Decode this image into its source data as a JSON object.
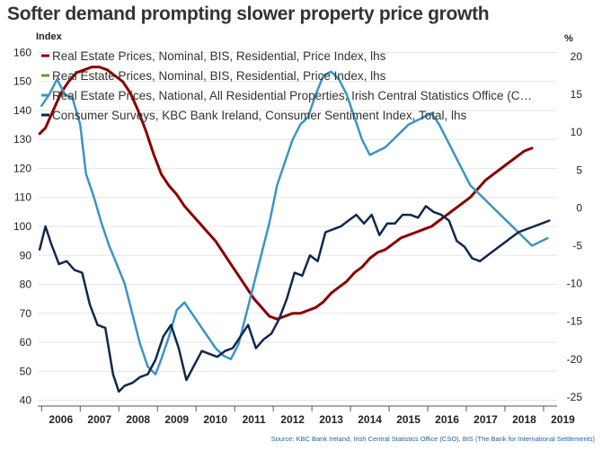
{
  "chart_data": {
    "type": "line",
    "title": "Softer demand prompting slower property price growth",
    "source": "Source: KBC Bank Ireland, Irish Central Statistics Office (CSO), BIS (The Bank for International Settlements)",
    "y_left": {
      "label": "Index",
      "ticks": [
        40,
        50,
        60,
        70,
        80,
        90,
        100,
        110,
        120,
        130,
        140,
        150,
        160
      ],
      "range": [
        38,
        162
      ]
    },
    "y_right": {
      "label": "%",
      "ticks": [
        -25,
        -20,
        -15,
        -10,
        -5,
        0,
        5,
        10,
        15,
        20
      ],
      "range": [
        -26.2,
        21.3
      ]
    },
    "x_axis": {
      "year_labels": [
        "2006",
        "2007",
        "2008",
        "2009",
        "2010",
        "2011",
        "2012",
        "2013",
        "2014",
        "2015",
        "2016",
        "2017",
        "2018",
        "2019"
      ],
      "range": [
        2005.9,
        2019.35
      ]
    },
    "grid": true,
    "legend_position": "top-left",
    "colors": {
      "nominal_bis": "#8b0000",
      "nominal_bis_duplicate": "#5e9e2e",
      "cso_yoy": "#3a95c4",
      "sentiment": "#10284e"
    },
    "series": [
      {
        "name": "Real Estate Prices, Nominal, BIS, Residential, Price Index, lhs",
        "axis": "left",
        "color": "#8b0000",
        "x": [
          2005.95,
          2006.1,
          2006.3,
          2006.5,
          2006.7,
          2006.9,
          2007.1,
          2007.3,
          2007.5,
          2007.7,
          2007.9,
          2008.1,
          2008.3,
          2008.5,
          2008.7,
          2008.9,
          2009.1,
          2009.3,
          2009.5,
          2009.7,
          2009.9,
          2010.1,
          2010.3,
          2010.5,
          2010.7,
          2010.9,
          2011.1,
          2011.3,
          2011.5,
          2011.7,
          2011.9,
          2012.1,
          2012.3,
          2012.5,
          2012.7,
          2012.9,
          2013.1,
          2013.3,
          2013.5,
          2013.7,
          2013.9,
          2014.1,
          2014.3,
          2014.5,
          2014.7,
          2014.9,
          2015.1,
          2015.3,
          2015.5,
          2015.7,
          2015.9,
          2016.1,
          2016.3,
          2016.5,
          2016.7,
          2016.9,
          2017.1,
          2017.3,
          2017.5,
          2017.7,
          2017.9,
          2018.1,
          2018.3,
          2018.5,
          2018.7
        ],
        "values": [
          132,
          134,
          140,
          146,
          150,
          153,
          154,
          155,
          155,
          154,
          152,
          150,
          146,
          140,
          133,
          125,
          118,
          114,
          111,
          107,
          104,
          101,
          98,
          95,
          91,
          87,
          83,
          79,
          75,
          72,
          69,
          68,
          69,
          70,
          70,
          71,
          72,
          74,
          77,
          79,
          81,
          84,
          86,
          89,
          91,
          92,
          94,
          96,
          97,
          98,
          99,
          100,
          102,
          104,
          106,
          108,
          110,
          113,
          116,
          118,
          120,
          122,
          124,
          126,
          127
        ]
      },
      {
        "name": "Real Estate Prices, Nominal, BIS, Residential, Price Index, lhs",
        "axis": "left",
        "color": "#5e9e2e",
        "x": [],
        "values": []
      },
      {
        "name": "Real Estate Prices, National, All Residential Properties, Irish Central Statistics Office (C…",
        "axis": "right",
        "color": "#3a95c4",
        "x": [
          2006.0,
          2006.2,
          2006.4,
          2006.6,
          2006.8,
          2007.0,
          2007.15,
          2007.35,
          2007.55,
          2007.75,
          2007.95,
          2008.15,
          2008.35,
          2008.55,
          2008.75,
          2008.95,
          2009.1,
          2009.3,
          2009.5,
          2009.7,
          2009.9,
          2010.1,
          2010.3,
          2010.5,
          2010.7,
          2010.9,
          2011.1,
          2011.3,
          2011.5,
          2011.7,
          2011.9,
          2012.1,
          2012.3,
          2012.5,
          2012.7,
          2012.9,
          2013.1,
          2013.3,
          2013.5,
          2013.7,
          2013.9,
          2014.1,
          2014.3,
          2014.5,
          2014.7,
          2014.9,
          2015.1,
          2015.3,
          2015.5,
          2015.7,
          2015.9,
          2016.1,
          2016.3,
          2016.5,
          2016.7,
          2016.9,
          2017.1,
          2017.3,
          2017.5,
          2017.7,
          2017.9,
          2018.1,
          2018.3,
          2018.5,
          2018.7,
          2018.9,
          2019.1
        ],
        "values": [
          13.5,
          15,
          17,
          15,
          14.5,
          11,
          4.5,
          1.5,
          -2,
          -5,
          -7.5,
          -10,
          -14,
          -18,
          -21,
          -22,
          -20,
          -17,
          -13.5,
          -12.5,
          -14,
          -15.5,
          -17,
          -18.5,
          -19.5,
          -20,
          -18,
          -14,
          -10,
          -6,
          -2,
          3,
          6,
          9,
          11,
          12,
          15,
          17.5,
          18,
          17,
          15,
          12,
          9,
          7,
          7.5,
          8,
          9,
          10,
          11,
          11.5,
          12,
          12.5,
          11,
          9,
          7,
          5,
          3,
          2,
          1,
          0,
          -1,
          -2,
          -3,
          -4,
          -5,
          -4.5,
          -4
        ]
      },
      {
        "name": "Consumer Surveys, KBC Bank Ireland, Consumer Sentiment Index, Total, lhs",
        "axis": "left",
        "color": "#10284e",
        "x": [
          2005.95,
          2006.1,
          2006.25,
          2006.45,
          2006.65,
          2006.85,
          2007.05,
          2007.25,
          2007.45,
          2007.65,
          2007.85,
          2008.0,
          2008.15,
          2008.35,
          2008.55,
          2008.75,
          2008.95,
          2009.15,
          2009.35,
          2009.55,
          2009.75,
          2009.95,
          2010.15,
          2010.35,
          2010.55,
          2010.75,
          2010.95,
          2011.15,
          2011.35,
          2011.55,
          2011.75,
          2011.95,
          2012.15,
          2012.35,
          2012.55,
          2012.75,
          2012.95,
          2013.15,
          2013.35,
          2013.55,
          2013.75,
          2013.95,
          2014.15,
          2014.35,
          2014.55,
          2014.75,
          2014.95,
          2015.15,
          2015.35,
          2015.55,
          2015.75,
          2015.95,
          2016.15,
          2016.35,
          2016.55,
          2016.75,
          2016.95,
          2017.15,
          2017.35,
          2017.55,
          2017.75,
          2017.95,
          2018.15,
          2018.35,
          2018.55,
          2018.75,
          2018.95,
          2019.15
        ],
        "values": [
          92,
          100,
          94,
          87,
          88,
          85,
          84,
          73,
          66,
          65,
          49,
          43,
          45,
          46,
          48,
          49,
          54,
          62,
          66,
          58,
          47,
          52,
          57,
          56,
          55,
          57,
          58,
          62,
          66,
          58,
          61,
          63,
          68,
          75,
          84,
          83,
          90,
          88,
          98,
          99,
          100,
          102,
          104,
          101,
          104,
          97,
          101,
          101,
          104,
          104,
          103,
          107,
          105,
          104,
          102,
          95,
          93,
          89,
          88,
          90,
          92,
          94,
          96,
          98,
          99,
          100,
          101,
          102
        ]
      }
    ]
  }
}
